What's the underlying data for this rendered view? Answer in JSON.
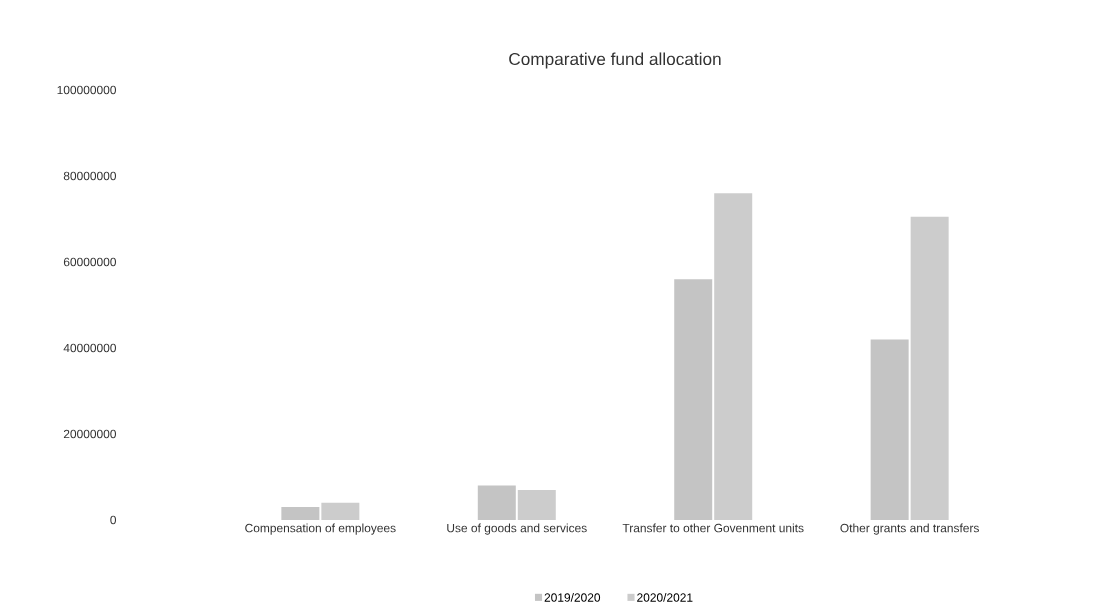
{
  "chart_data": {
    "type": "bar",
    "title": "Comparative fund allocation",
    "categories": [
      "Compensation of employees",
      "Use of goods and services",
      "Transfer to other Govenment units",
      "Other grants and transfers"
    ],
    "series": [
      {
        "name": "2019/2020",
        "color": "#c4c4c4",
        "values": [
          3000000,
          8000000,
          56000000,
          42000000
        ]
      },
      {
        "name": "2020/2021",
        "color": "#cccccc",
        "values": [
          4000000,
          7000000,
          76000000,
          70500000
        ]
      }
    ],
    "ylim": [
      0,
      100000000
    ],
    "yticks": [
      0,
      20000000,
      40000000,
      60000000,
      80000000,
      100000000
    ],
    "legend": "bottom"
  }
}
